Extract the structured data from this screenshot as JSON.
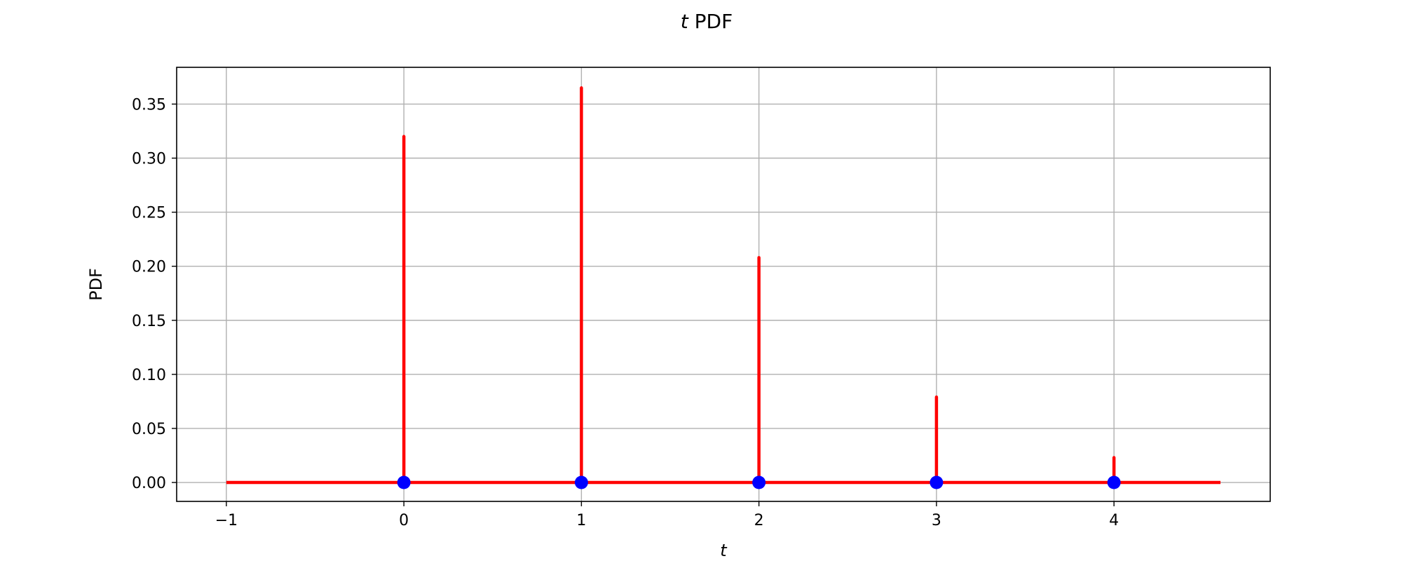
{
  "chart_data": {
    "type": "stem",
    "title": {
      "var": "t",
      "text": " PDF"
    },
    "xlabel": "t",
    "ylabel": "PDF",
    "xlim": [
      -1.28,
      4.88
    ],
    "ylim": [
      -0.0175,
      0.384
    ],
    "xticks": [
      -1,
      0,
      1,
      2,
      3,
      4
    ],
    "xtick_labels": [
      "−1",
      "0",
      "1",
      "2",
      "3",
      "4"
    ],
    "yticks": [
      0.0,
      0.05,
      0.1,
      0.15,
      0.2,
      0.25,
      0.3,
      0.35
    ],
    "ytick_labels": [
      "0.00",
      "0.05",
      "0.10",
      "0.15",
      "0.20",
      "0.25",
      "0.30",
      "0.35"
    ],
    "grid": true,
    "baseline": {
      "from": -1,
      "to": 4.6,
      "y": 0
    },
    "x": [
      0,
      1,
      2,
      3,
      4
    ],
    "values": [
      0.32,
      0.365,
      0.208,
      0.079,
      0.023
    ],
    "colors": {
      "stem": "#ff0000",
      "marker": "#0000ff",
      "grid": "#b0b0b0",
      "axes": "#000000"
    }
  }
}
